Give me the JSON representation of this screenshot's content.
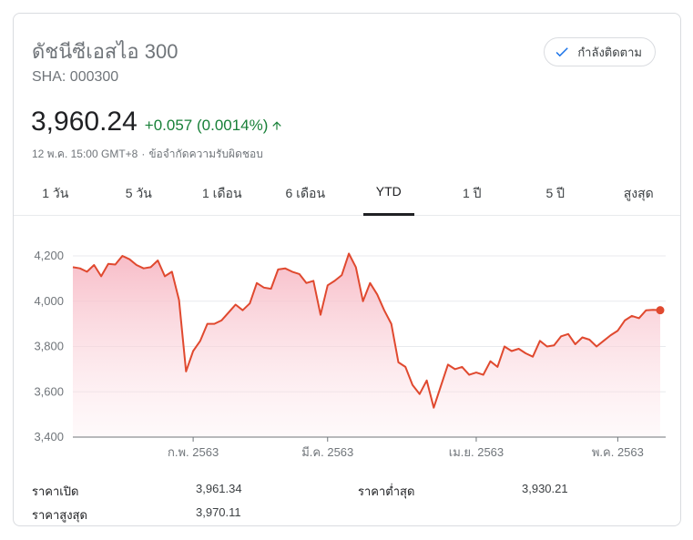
{
  "header": {
    "title": "ดัชนีซีเอสไอ 300",
    "ticker": "SHA: 000300",
    "follow_label": "กำลังติดตาม"
  },
  "quote": {
    "price": "3,960.24",
    "change": "+0.057 (0.0014%)",
    "timestamp": "12 พ.ค. 15:00 GMT+8",
    "separator": "·",
    "disclaimer": "ข้อจำกัดความรับผิดชอบ"
  },
  "tabs": [
    {
      "label": "1 วัน",
      "active": false
    },
    {
      "label": "5 วัน",
      "active": false
    },
    {
      "label": "1 เดือน",
      "active": false
    },
    {
      "label": "6 เดือน",
      "active": false
    },
    {
      "label": "YTD",
      "active": true
    },
    {
      "label": "1 ปี",
      "active": false
    },
    {
      "label": "5 ปี",
      "active": false
    },
    {
      "label": "สูงสุด",
      "active": false
    }
  ],
  "colors": {
    "line": "#e0492f",
    "positive": "#188038",
    "fill_top": "#f7b8c4"
  },
  "chart_data": {
    "type": "area",
    "y_ticks": [
      "4,200",
      "4,000",
      "3,800",
      "3,600",
      "3,400"
    ],
    "y_tick_values": [
      4200,
      4000,
      3800,
      3600,
      3400
    ],
    "ylim": [
      3400,
      4200
    ],
    "x_ticks": [
      {
        "label": "ก.พ. 2563",
        "index": 17
      },
      {
        "label": "มี.ค. 2563",
        "index": 36
      },
      {
        "label": "เม.ย. 2563",
        "index": 57
      },
      {
        "label": "พ.ค. 2563",
        "index": 77
      }
    ],
    "grid": true,
    "values": [
      4150,
      4145,
      4130,
      4160,
      4110,
      4165,
      4162,
      4200,
      4185,
      4160,
      4145,
      4150,
      4180,
      4110,
      4130,
      4005,
      3690,
      3780,
      3825,
      3900,
      3900,
      3915,
      3950,
      3985,
      3960,
      3990,
      4080,
      4060,
      4055,
      4140,
      4145,
      4130,
      4120,
      4080,
      4090,
      3940,
      4070,
      4090,
      4115,
      4210,
      4150,
      4000,
      4080,
      4030,
      3960,
      3900,
      3730,
      3710,
      3630,
      3590,
      3650,
      3530,
      3625,
      3720,
      3700,
      3710,
      3675,
      3685,
      3675,
      3735,
      3710,
      3800,
      3780,
      3790,
      3770,
      3755,
      3825,
      3800,
      3805,
      3845,
      3855,
      3810,
      3840,
      3830,
      3800,
      3825,
      3850,
      3870,
      3915,
      3935,
      3925,
      3960,
      3962,
      3960.24
    ]
  },
  "stats": {
    "open_label": "ราคาเปิด",
    "open_value": "3,961.34",
    "low_label": "ราคาต่ำสุด",
    "low_value": "3,930.21",
    "high_label": "ราคาสูงสุด",
    "high_value": "3,970.11"
  }
}
